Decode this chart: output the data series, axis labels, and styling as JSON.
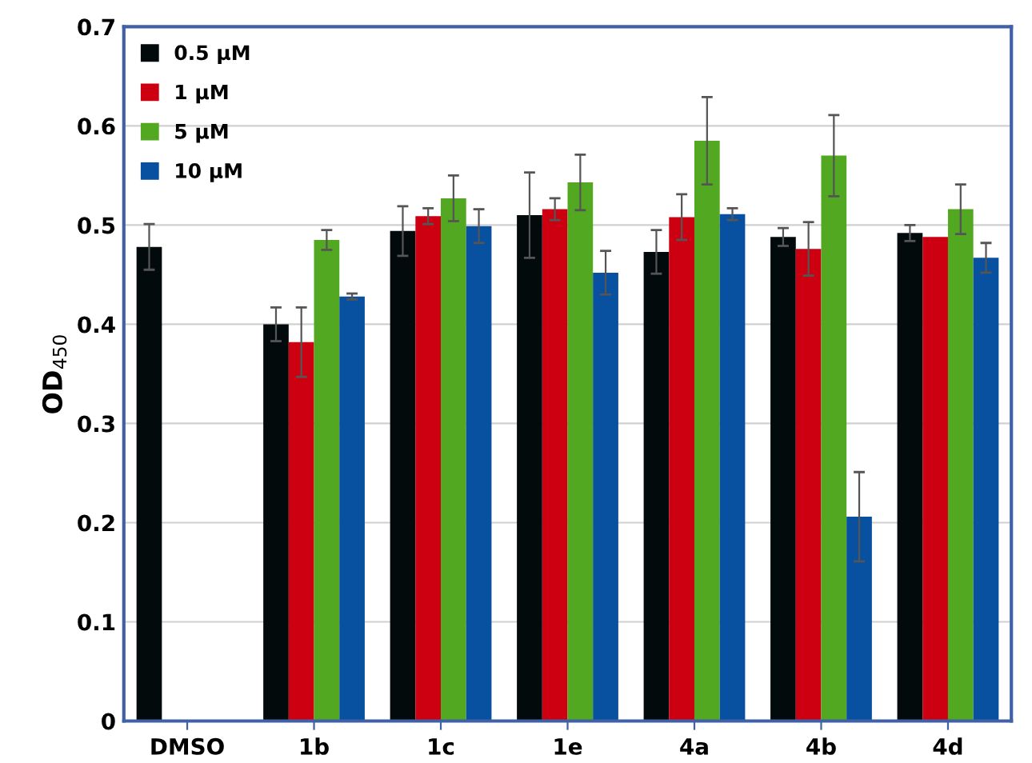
{
  "chart_data": {
    "type": "bar",
    "ylabel": "OD$_{450}$",
    "categories": [
      "DMSO",
      "1b",
      "1c",
      "1e",
      "4a",
      "4b",
      "4d"
    ],
    "series": [
      {
        "name": "0.5 µM",
        "color": "#030a0c",
        "values": [
          0.478,
          0.4,
          0.494,
          0.51,
          0.473,
          0.488,
          0.492
        ],
        "errors": [
          0.023,
          0.017,
          0.025,
          0.043,
          0.022,
          0.009,
          0.008
        ]
      },
      {
        "name": "1 µM",
        "color": "#cc0011",
        "values": [
          null,
          0.382,
          0.509,
          0.516,
          0.508,
          0.476,
          0.488
        ],
        "errors": [
          null,
          0.035,
          0.008,
          0.011,
          0.023,
          0.027,
          null
        ]
      },
      {
        "name": "5 µM",
        "color": "#52a820",
        "values": [
          null,
          0.485,
          0.527,
          0.543,
          0.585,
          0.57,
          0.516
        ],
        "errors": [
          null,
          0.01,
          0.023,
          0.028,
          0.044,
          0.041,
          0.025
        ]
      },
      {
        "name": "10 µM",
        "color": "#0850a0",
        "values": [
          null,
          0.428,
          0.499,
          0.452,
          0.511,
          0.206,
          0.467
        ],
        "errors": [
          null,
          0.003,
          0.017,
          0.022,
          0.006,
          0.045,
          0.015
        ]
      }
    ],
    "ylim": [
      0,
      0.7
    ],
    "yticks": [
      0,
      0.1,
      0.2,
      0.3,
      0.4,
      0.5,
      0.6,
      0.7
    ],
    "grid": "y",
    "legend": "top left"
  }
}
